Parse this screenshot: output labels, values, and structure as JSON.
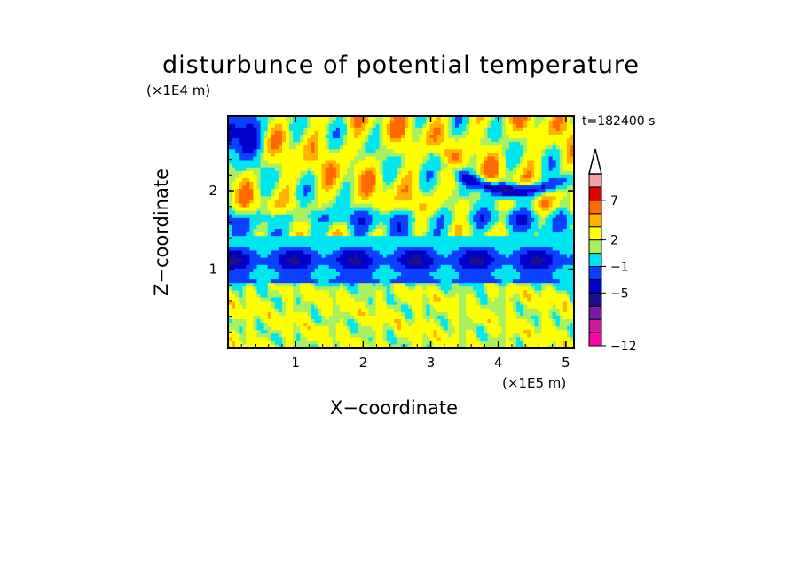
{
  "chart_data": {
    "type": "heatmap",
    "title": "disturbunce of potential temperature",
    "xlabel": "X−coordinate",
    "ylabel": "Z−coordinate",
    "x_unit": "(×1E5 m)",
    "y_unit": "(×1E4 m)",
    "time_label": "t=182400 s",
    "xlim": [
      0,
      5.12
    ],
    "ylim": [
      0,
      2.95
    ],
    "x_ticks": [
      "1",
      "2",
      "3",
      "4",
      "5"
    ],
    "y_ticks": [
      "1",
      "2"
    ],
    "colorbar": {
      "levels": [
        -12,
        -11,
        -9,
        -7,
        -5,
        -3,
        -1,
        1,
        2,
        4,
        5,
        7,
        9
      ],
      "colors": [
        "#ff00aa",
        "#cc1a99",
        "#7a1aa8",
        "#1b0f8c",
        "#0000cc",
        "#0a40ff",
        "#00e6f0",
        "#a8f060",
        "#ffff00",
        "#ffb000",
        "#ff6a00",
        "#e00000",
        "#f5a0a0"
      ],
      "extend_top_color": "#ffffff",
      "tick_labels": [
        "7",
        "2",
        "−1",
        "−5",
        "−12"
      ]
    },
    "grid": false,
    "legend": "colorbar at right"
  }
}
